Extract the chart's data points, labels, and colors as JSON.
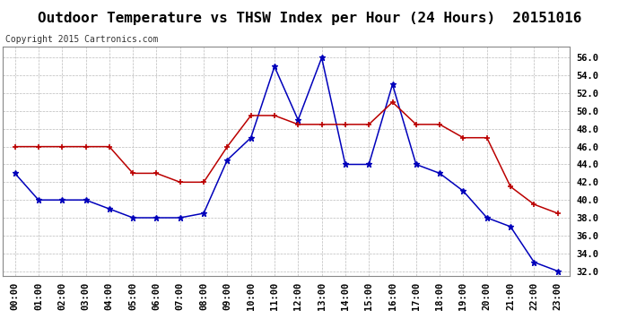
{
  "title": "Outdoor Temperature vs THSW Index per Hour (24 Hours)  20151016",
  "copyright": "Copyright 2015 Cartronics.com",
  "hours": [
    "00:00",
    "01:00",
    "02:00",
    "03:00",
    "04:00",
    "05:00",
    "06:00",
    "07:00",
    "08:00",
    "09:00",
    "10:00",
    "11:00",
    "12:00",
    "13:00",
    "14:00",
    "15:00",
    "16:00",
    "17:00",
    "18:00",
    "19:00",
    "20:00",
    "21:00",
    "22:00",
    "23:00"
  ],
  "thsw": [
    43,
    40,
    40,
    40,
    39,
    38,
    38,
    38,
    38.5,
    44.5,
    47,
    55,
    49,
    56,
    44,
    44,
    53,
    44,
    43,
    41,
    38,
    37,
    33,
    32
  ],
  "temp": [
    46,
    46,
    46,
    46,
    46,
    43,
    43,
    42,
    42,
    46,
    49.5,
    49.5,
    48.5,
    48.5,
    48.5,
    48.5,
    51,
    48.5,
    48.5,
    47,
    47,
    41.5,
    39.5,
    38.5
  ],
  "thsw_color": "#0000bb",
  "temp_color": "#bb0000",
  "grid_color": "#bbbbbb",
  "bg_color": "#ffffff",
  "ylim_min": 31.5,
  "ylim_max": 57.2,
  "ytick_min": 32.0,
  "ytick_max": 56.0,
  "ytick_step": 2.0,
  "title_fontsize": 11.5,
  "copyright_fontsize": 7,
  "axis_fontsize": 7.5,
  "legend_fontsize": 8
}
